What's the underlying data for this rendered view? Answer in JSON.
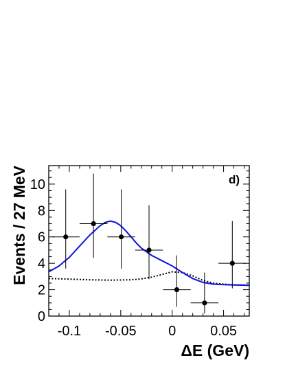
{
  "chart_data": {
    "type": "scatter",
    "panel_label": "d)",
    "xlabel": "ΔE (GeV)",
    "ylabel": "Events / 27 MeV",
    "xlim": [
      -0.12,
      0.075
    ],
    "ylim": [
      0,
      11.4
    ],
    "x_ticks": [
      {
        "value": -0.1,
        "label": "-0.1"
      },
      {
        "value": -0.05,
        "label": "-0.05"
      },
      {
        "value": 0,
        "label": "0"
      },
      {
        "value": 0.05,
        "label": "0.05"
      }
    ],
    "y_ticks": [
      {
        "value": 0,
        "label": "0"
      },
      {
        "value": 2,
        "label": "2"
      },
      {
        "value": 4,
        "label": "4"
      },
      {
        "value": 6,
        "label": "6"
      },
      {
        "value": 8,
        "label": "8"
      },
      {
        "value": 10,
        "label": "10"
      }
    ],
    "grid": false,
    "legend": "none",
    "data_points": [
      {
        "x": -0.1035,
        "y": 6,
        "xerr": 0.0135,
        "yerr_low": 2.4,
        "yerr_high": 3.6
      },
      {
        "x": -0.0765,
        "y": 7,
        "xerr": 0.0135,
        "yerr_low": 2.6,
        "yerr_high": 3.8
      },
      {
        "x": -0.0495,
        "y": 6,
        "xerr": 0.0135,
        "yerr_low": 2.4,
        "yerr_high": 3.6
      },
      {
        "x": -0.0225,
        "y": 5,
        "xerr": 0.0135,
        "yerr_low": 2.2,
        "yerr_high": 3.4
      },
      {
        "x": 0.0045,
        "y": 2,
        "xerr": 0.0135,
        "yerr_low": 1.3,
        "yerr_high": 2.6
      },
      {
        "x": 0.0315,
        "y": 1,
        "xerr": 0.0135,
        "yerr_low": 0.8,
        "yerr_high": 2.3
      },
      {
        "x": 0.0585,
        "y": 4,
        "xerr": 0.0135,
        "yerr_low": 1.9,
        "yerr_high": 3.2
      }
    ],
    "fit_curve": {
      "style": "solid",
      "color": "#1010e0",
      "x": [
        -0.12,
        -0.11,
        -0.1,
        -0.09,
        -0.08,
        -0.07,
        -0.065,
        -0.06,
        -0.055,
        -0.05,
        -0.045,
        -0.04,
        -0.035,
        -0.03,
        -0.02,
        -0.01,
        0,
        0.01,
        0.02,
        0.03,
        0.04,
        0.05,
        0.06,
        0.075
      ],
      "y": [
        3.35,
        3.8,
        4.45,
        5.3,
        6.15,
        6.85,
        7.1,
        7.2,
        7.1,
        6.85,
        6.45,
        6.0,
        5.55,
        5.15,
        4.6,
        4.2,
        3.8,
        3.3,
        2.85,
        2.55,
        2.42,
        2.38,
        2.36,
        2.33
      ]
    },
    "background_curve": {
      "style": "dotted",
      "color": "#000000",
      "x": [
        -0.12,
        -0.1,
        -0.08,
        -0.06,
        -0.04,
        -0.03,
        -0.02,
        -0.01,
        0,
        0.01,
        0.02,
        0.03,
        0.04,
        0.05,
        0.06,
        0.075
      ],
      "y": [
        2.85,
        2.8,
        2.75,
        2.72,
        2.75,
        2.82,
        2.95,
        3.15,
        3.35,
        3.3,
        3.05,
        2.7,
        2.5,
        2.42,
        2.38,
        2.35
      ]
    }
  }
}
